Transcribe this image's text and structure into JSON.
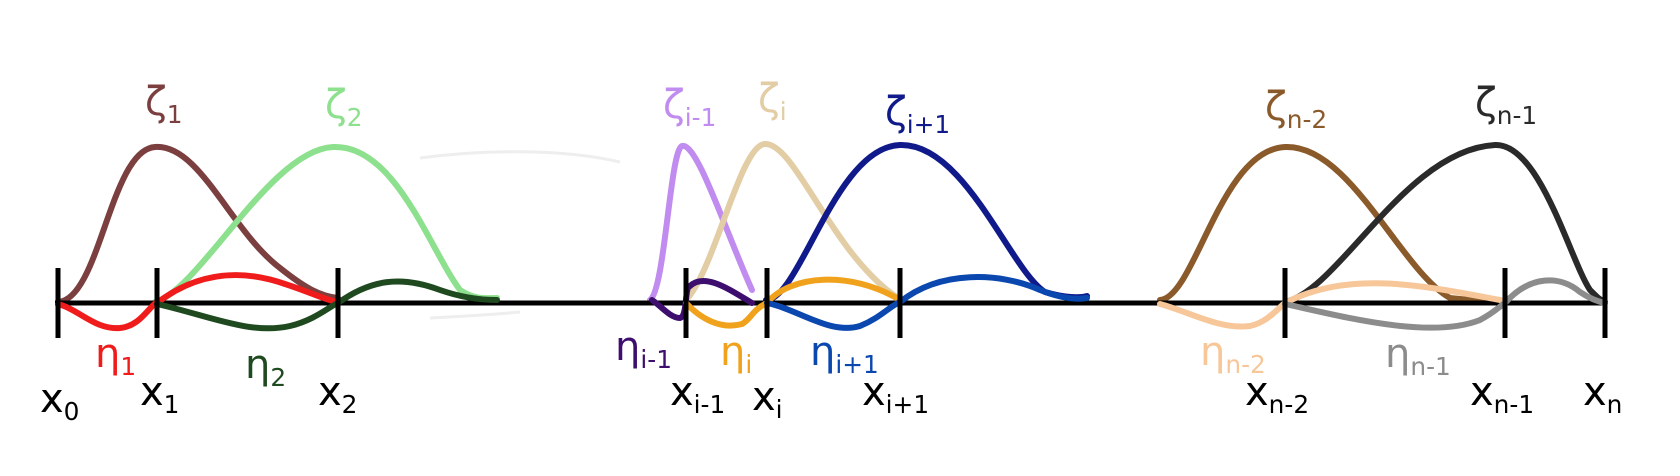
{
  "colors": {
    "axis": "#000000",
    "zeta_1": "#7b3f3f",
    "zeta_2": "#8de08d",
    "zeta_i_minus_1": "#c08cf0",
    "zeta_i": "#e2cda5",
    "zeta_i_plus_1": "#101a8a",
    "zeta_n_minus_2": "#8b5a2b",
    "zeta_n_minus_1": "#2a2a2a",
    "eta_1": "#f01c1c",
    "eta_2": "#1f4a1f",
    "eta_i_minus_1": "#3d0e6e",
    "eta_i": "#f0a21c",
    "eta_i_plus_1": "#0a48b0",
    "eta_n_minus_2": "#f7c79a",
    "eta_n_minus_1": "#8c8c8c"
  },
  "nodes": [
    {
      "base": "x",
      "sub": "0"
    },
    {
      "base": "x",
      "sub": "1"
    },
    {
      "base": "x",
      "sub": "2"
    },
    {
      "base": "x",
      "sub": "i-1"
    },
    {
      "base": "x",
      "sub": "i"
    },
    {
      "base": "x",
      "sub": "i+1"
    },
    {
      "base": "x",
      "sub": "n-2"
    },
    {
      "base": "x",
      "sub": "n-1"
    },
    {
      "base": "x",
      "sub": "n"
    }
  ],
  "zeta_labels": [
    {
      "base": "ζ",
      "sub": "1"
    },
    {
      "base": "ζ",
      "sub": "2"
    },
    {
      "base": "ζ",
      "sub": "i-1"
    },
    {
      "base": "ζ",
      "sub": "i"
    },
    {
      "base": "ζ",
      "sub": "i+1"
    },
    {
      "base": "ζ",
      "sub": "n-2"
    },
    {
      "base": "ζ",
      "sub": "n-1"
    }
  ],
  "eta_labels": [
    {
      "base": "η",
      "sub": "1"
    },
    {
      "base": "η",
      "sub": "2"
    },
    {
      "base": "η",
      "sub": "i-1"
    },
    {
      "base": "η",
      "sub": "i"
    },
    {
      "base": "η",
      "sub": "i+1"
    },
    {
      "base": "η",
      "sub": "n-2"
    },
    {
      "base": "η",
      "sub": "n-1"
    }
  ]
}
